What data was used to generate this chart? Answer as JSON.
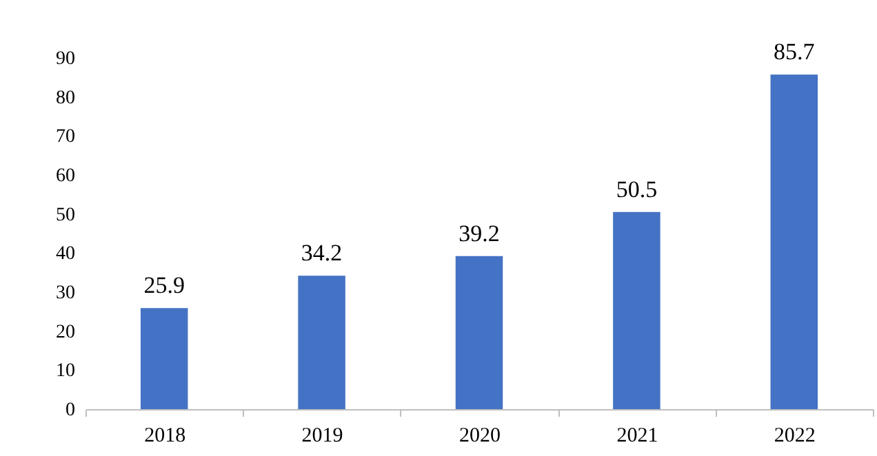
{
  "chart_data": {
    "type": "bar",
    "categories": [
      "2018",
      "2019",
      "2020",
      "2021",
      "2022"
    ],
    "values": [
      25.9,
      34.2,
      39.2,
      50.5,
      85.7
    ],
    "color": "#4472c4",
    "ylim": [
      0,
      90
    ],
    "yticks": [
      0,
      10,
      20,
      30,
      40,
      50,
      60,
      70,
      80,
      90
    ],
    "grid": false,
    "data_labels": true
  }
}
